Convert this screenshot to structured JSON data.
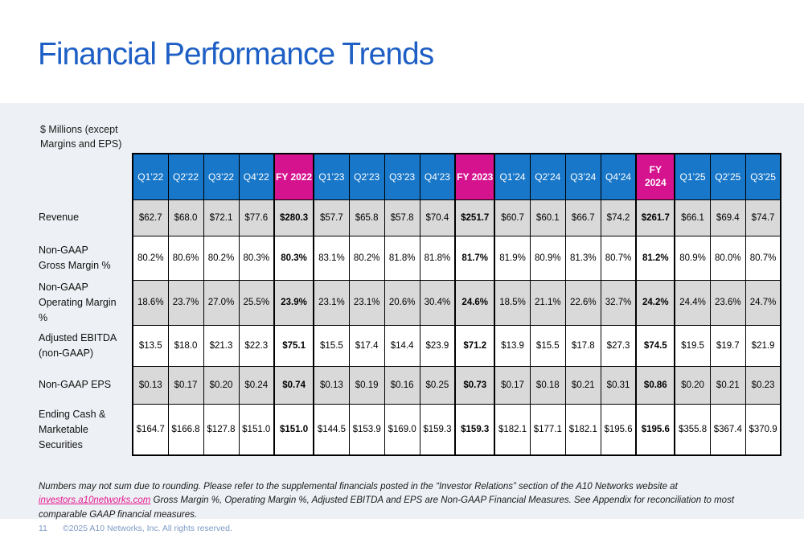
{
  "slide": {
    "title": "Financial Performance Trends",
    "unit_label": "$ Millions (except\nMargins and EPS)"
  },
  "colors": {
    "title_blue": "#1E5FC5",
    "header_blue": "#1877C9",
    "header_pink": "#D6138F",
    "link_pink": "#E5188F",
    "panel_background": "#EDF0F4",
    "row_gray": "#D9D9D9",
    "row_white": "#FFFFFF",
    "footer_text": "#7D9AC5"
  },
  "table": {
    "columns": [
      {
        "label": "Q1’22",
        "type": "q"
      },
      {
        "label": "Q2’22",
        "type": "q"
      },
      {
        "label": "Q3’22",
        "type": "q"
      },
      {
        "label": "Q4’22",
        "type": "q"
      },
      {
        "label": "FY 2022",
        "type": "fy"
      },
      {
        "label": "Q1’23",
        "type": "q"
      },
      {
        "label": "Q2’23",
        "type": "q"
      },
      {
        "label": "Q3’23",
        "type": "q"
      },
      {
        "label": "Q4’23",
        "type": "q"
      },
      {
        "label": "FY 2023",
        "type": "fy"
      },
      {
        "label": "Q1’24",
        "type": "q"
      },
      {
        "label": "Q2’24",
        "type": "q"
      },
      {
        "label": "Q3’24",
        "type": "q"
      },
      {
        "label": "Q4’24",
        "type": "q"
      },
      {
        "label": "FY 2024",
        "type": "fy",
        "wrap": true
      },
      {
        "label": "Q1’25",
        "type": "q"
      },
      {
        "label": "Q2’25",
        "type": "q"
      },
      {
        "label": "Q3'25",
        "type": "q"
      }
    ],
    "rows": [
      {
        "label": "Revenue",
        "shade": "gray",
        "values": [
          "$62.7",
          "$68.0",
          "$72.1",
          "$77.6",
          "$280.3",
          "$57.7",
          "$65.8",
          "$57.8",
          "$70.4",
          "$251.7",
          "$60.7",
          "$60.1",
          "$66.7",
          "$74.2",
          "$261.7",
          "$66.1",
          "$69.4",
          "$74.7"
        ]
      },
      {
        "label": "Non-GAAP\nGross Margin %",
        "shade": "white",
        "values": [
          "80.2%",
          "80.6%",
          "80.2%",
          "80.3%",
          "80.3%",
          "83.1%",
          "80.2%",
          "81.8%",
          "81.8%",
          "81.7%",
          "81.9%",
          "80.9%",
          "81.3%",
          "80.7%",
          "81.2%",
          "80.9%",
          "80.0%",
          "80.7%"
        ]
      },
      {
        "label": "Non-GAAP\nOperating Margin %",
        "shade": "gray",
        "values": [
          "18.6%",
          "23.7%",
          "27.0%",
          "25.5%",
          "23.9%",
          "23.1%",
          "23.1%",
          "20.6%",
          "30.4%",
          "24.6%",
          "18.5%",
          "21.1%",
          "22.6%",
          "32.7%",
          "24.2%",
          "24.4%",
          "23.6%",
          "24.7%"
        ]
      },
      {
        "label": "Adjusted EBITDA\n(non-GAAP)",
        "shade": "white",
        "values": [
          "$13.5",
          "$18.0",
          "$21.3",
          "$22.3",
          "$75.1",
          "$15.5",
          "$17.4",
          "$14.4",
          "$23.9",
          "$71.2",
          "$13.9",
          "$15.5",
          "$17.8",
          "$27.3",
          "$74.5",
          "$19.5",
          "$19.7",
          "$21.9"
        ]
      },
      {
        "label": "Non-GAAP EPS",
        "shade": "gray",
        "values": [
          "$0.13",
          "$0.17",
          "$0.20",
          "$0.24",
          "$0.74",
          "$0.13",
          "$0.19",
          "$0.16",
          "$0.25",
          "$0.73",
          "$0.17",
          "$0.18",
          "$0.21",
          "$0.31",
          "$0.86",
          "$0.20",
          "$0.21",
          "$0.23"
        ]
      },
      {
        "label": "Ending Cash &\nMarketable\nSecurities",
        "shade": "white",
        "values": [
          "$164.7",
          "$166.8",
          "$127.8",
          "$151.0",
          "$151.0",
          "$144.5",
          "$153.9",
          "$169.0",
          "$159.3",
          "$159.3",
          "$182.1",
          "$177.1",
          "$182.1",
          "$195.6",
          "$195.6",
          "$355.8",
          "$367.4",
          "$370.9"
        ]
      }
    ]
  },
  "footnote": {
    "before_link": "Numbers may not sum due to rounding. Please refer to the supplemental financials posted in the “Investor Relations” section of the A10 Networks website at ",
    "link": "investors.a10networks.com",
    "after_link": " Gross Margin %, Operating Margin %, Adjusted EBITDA and EPS are Non-GAAP Financial Measures.  See Appendix for reconciliation to most comparable GAAP financial measures."
  },
  "footer": {
    "page_number": "11",
    "copyright": "©2025 A10 Networks, Inc. All rights reserved."
  }
}
